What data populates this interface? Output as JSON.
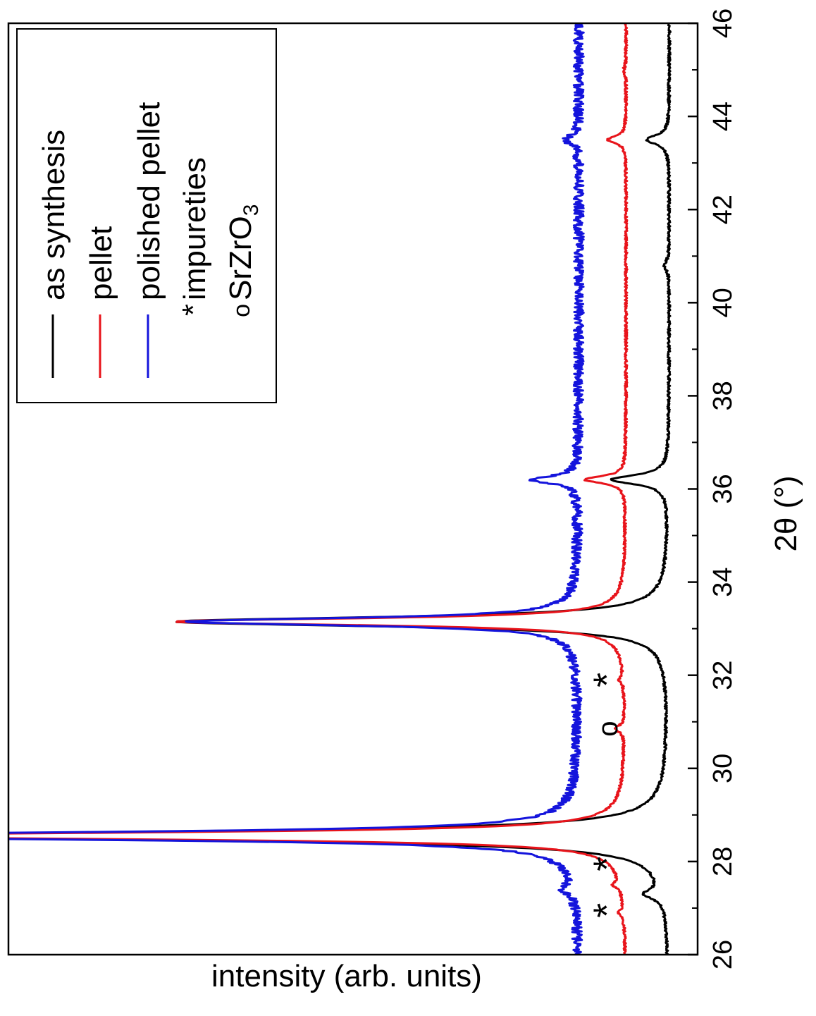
{
  "chart_data": {
    "type": "line",
    "orientation": "rotated-90-clockwise",
    "xlabel": "2θ (°)",
    "ylabel": "intensity (arb. units)",
    "xlim": [
      26,
      46
    ],
    "x_ticks": [
      "26",
      "28",
      "30",
      "32",
      "34",
      "36",
      "38",
      "40",
      "42",
      "44",
      "46"
    ],
    "y_ticks_shown": false,
    "legend_position": "top-left",
    "series": [
      {
        "name": "as synthesis",
        "color": "#000000",
        "baseline": 0.0,
        "noise": 0.003,
        "peaks": [
          {
            "x": 27.3,
            "height": 0.045,
            "width": 0.12
          },
          {
            "x": 28.55,
            "height": 2.0,
            "width": 0.12
          },
          {
            "x": 33.15,
            "height": 1.2,
            "width": 0.12
          },
          {
            "x": 36.2,
            "height": 0.14,
            "width": 0.12
          },
          {
            "x": 40.8,
            "height": 0.012,
            "width": 0.12
          },
          {
            "x": 43.5,
            "height": 0.055,
            "width": 0.12
          }
        ]
      },
      {
        "name": "pellet",
        "color": "#e8141b",
        "baseline": 0.105,
        "noise": 0.003,
        "peaks": [
          {
            "x": 26.9,
            "height": 0.012,
            "width": 0.08
          },
          {
            "x": 27.5,
            "height": 0.018,
            "width": 0.08
          },
          {
            "x": 28.55,
            "height": 2.0,
            "width": 0.09
          },
          {
            "x": 30.85,
            "height": 0.022,
            "width": 0.08
          },
          {
            "x": 31.9,
            "height": 0.01,
            "width": 0.08
          },
          {
            "x": 33.15,
            "height": 1.1,
            "width": 0.09
          },
          {
            "x": 36.2,
            "height": 0.1,
            "width": 0.09
          },
          {
            "x": 43.5,
            "height": 0.045,
            "width": 0.09
          },
          {
            "x": 45.0,
            "height": 0.006,
            "width": 0.08
          }
        ]
      },
      {
        "name": "polished pellet",
        "color": "#1414dc",
        "baseline": 0.22,
        "noise": 0.012,
        "peaks": [
          {
            "x": 27.4,
            "height": 0.025,
            "width": 0.1
          },
          {
            "x": 28.55,
            "height": 2.0,
            "width": 0.1
          },
          {
            "x": 33.15,
            "height": 0.95,
            "width": 0.1
          },
          {
            "x": 36.2,
            "height": 0.11,
            "width": 0.1
          },
          {
            "x": 43.5,
            "height": 0.035,
            "width": 0.1
          }
        ]
      }
    ],
    "markers": [
      {
        "symbol": "*",
        "meaning": "impureties",
        "x": 26.95,
        "level": 0.145
      },
      {
        "symbol": "*",
        "meaning": "impureties",
        "x": 27.95,
        "level": 0.145
      },
      {
        "symbol": "o",
        "meaning": "SrZrO3",
        "x": 30.85,
        "level": 0.145
      },
      {
        "symbol": "*",
        "meaning": "impureties",
        "x": 31.9,
        "level": 0.145
      }
    ],
    "legend": [
      {
        "label": "as synthesis",
        "kind": "line",
        "color": "#000000"
      },
      {
        "label": "pellet",
        "kind": "line",
        "color": "#e8141b"
      },
      {
        "label": "polished pellet",
        "kind": "line",
        "color": "#1414dc"
      },
      {
        "label": "impureties",
        "kind": "symbol",
        "symbol": "*"
      },
      {
        "label": "SrZrO",
        "subscript": "3",
        "kind": "symbol",
        "symbol": "o"
      }
    ]
  }
}
